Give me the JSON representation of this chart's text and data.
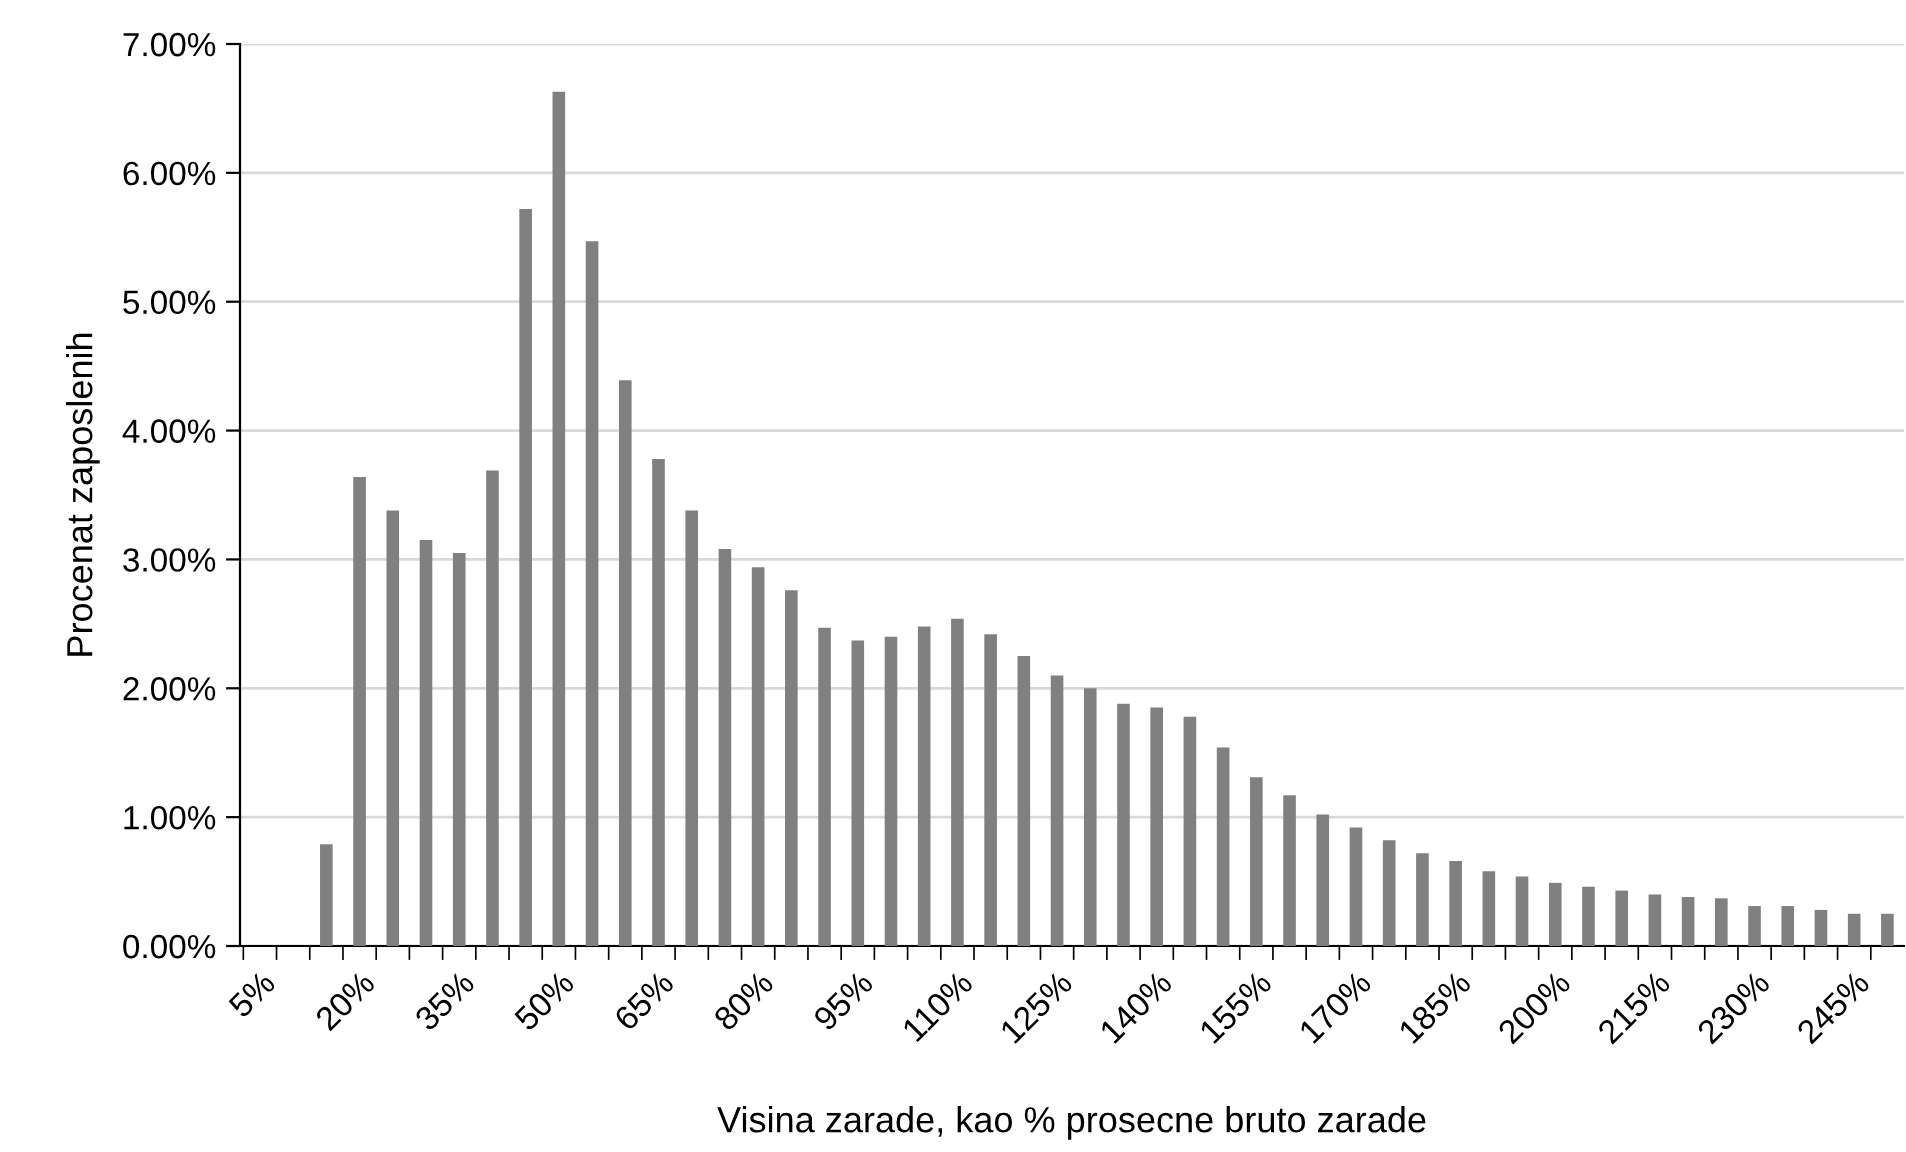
{
  "chart_data": {
    "type": "bar",
    "xlabel": "Visina zarade, kao % prosecne bruto zarade",
    "ylabel": "Procenat zaposlenih",
    "categories": [
      "5%",
      null,
      null,
      "20%",
      null,
      null,
      "35%",
      null,
      null,
      "50%",
      null,
      null,
      "65%",
      null,
      null,
      "80%",
      null,
      null,
      "95%",
      null,
      null,
      "110%",
      null,
      null,
      "125%",
      null,
      null,
      "140%",
      null,
      null,
      "155%",
      null,
      null,
      "170%",
      null,
      null,
      "185%",
      null,
      null,
      "200%",
      null,
      null,
      "215%",
      null,
      null,
      "230%",
      null,
      null,
      "245%",
      null
    ],
    "values": [
      null,
      null,
      0.79,
      3.64,
      3.38,
      3.15,
      3.05,
      3.69,
      5.72,
      6.63,
      5.47,
      4.39,
      3.78,
      3.38,
      3.08,
      2.94,
      2.76,
      2.47,
      2.37,
      2.4,
      2.48,
      2.54,
      2.42,
      2.25,
      2.1,
      2.0,
      1.88,
      1.85,
      1.78,
      1.54,
      1.31,
      1.17,
      1.02,
      0.92,
      0.82,
      0.72,
      0.66,
      0.58,
      0.54,
      0.49,
      0.46,
      0.43,
      0.4,
      0.38,
      0.37,
      0.31,
      0.31,
      0.28,
      0.25,
      0.25
    ],
    "color": "#808080",
    "ylim": [
      0,
      7
    ],
    "yticks": [
      {
        "value": 0,
        "label": "0.00%"
      },
      {
        "value": 1,
        "label": "1.00%"
      },
      {
        "value": 2,
        "label": "2.00%"
      },
      {
        "value": 3,
        "label": "3.00%"
      },
      {
        "value": 4,
        "label": "4.00%"
      },
      {
        "value": 5,
        "label": "5.00%"
      },
      {
        "value": 6,
        "label": "6.00%"
      },
      {
        "value": 7,
        "label": "7.00%"
      }
    ],
    "grid": "y",
    "legend": false
  }
}
